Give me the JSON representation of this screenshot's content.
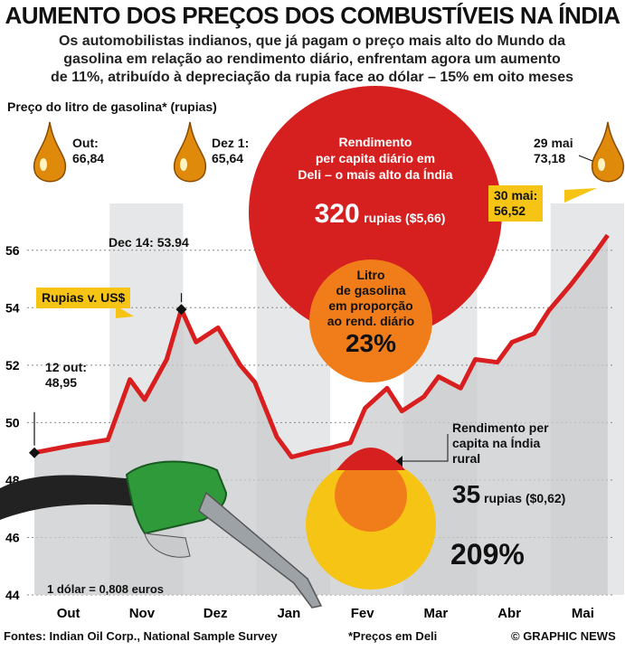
{
  "title": "AUMENTO DOS PREÇOS DOS COMBUSTÍVEIS NA ÍNDIA",
  "subtitle": [
    "Os automobilistas indianos, que já pagam o preço mais alto do Mundo da",
    "gasolina em relação ao rendimento diário, enfrentam agora um aumento",
    "de 11%, atribuído à depreciação da rupia face ao dólar – 15% em oito meses"
  ],
  "price_label": "Preço do litro de gasolina* (rupias)",
  "prices": [
    {
      "label": "Out:",
      "value": "66,84"
    },
    {
      "label": "Dez 1:",
      "value": "65,64"
    },
    {
      "label": "29 mai",
      "value": "73,18"
    }
  ],
  "callouts": {
    "rupias_label": "Rupias v. US$",
    "may30_label": "30 mai:",
    "may30_value": "56,52",
    "dec14": "Dec 14: 53.94",
    "oct12_label": "12 out:",
    "oct12_value": "48,95"
  },
  "delhi": {
    "line1": "Rendimento",
    "line2": "per capita diário em",
    "line3": "Deli – o mais alto da Índia",
    "amount": "320",
    "unit": "rupias ($5,66)"
  },
  "delhi_share": {
    "line1": "Litro",
    "line2": "de gasolina",
    "line3": "em proporção",
    "line4": "ao rend. diário",
    "percent": "23%"
  },
  "rural": {
    "line1": "Rendimento per",
    "line2": "capita na Índia",
    "line3": "rural",
    "amount": "35",
    "unit": "rupias ($0,62)",
    "percent": "209%"
  },
  "exchange_note": "1 dólar = 0,808 euros",
  "footer": {
    "sources": "Fontes: Indian Oil Corp., National Sample Survey",
    "note": "*Preços em Deli",
    "credit": "© GRAPHIC NEWS"
  },
  "colors": {
    "line": "#d81e1e",
    "area": "#c9cbcd",
    "band": "#e6e7e8",
    "red_circle": "#d62020",
    "orange_circle": "#f07d1a",
    "yellow_circle": "#f6c414",
    "nozzle": "#2e9a3a"
  },
  "chart_data": {
    "type": "area",
    "title": "Rupias v. US$",
    "xlabel": "",
    "ylabel": "",
    "ylim": [
      44,
      57
    ],
    "yticks": [
      44,
      46,
      48,
      50,
      52,
      54,
      56
    ],
    "categories": [
      "Out",
      "Nov",
      "Dez",
      "Jan",
      "Fev",
      "Mar",
      "Abr",
      "Mai"
    ],
    "x": [
      0,
      0.5,
      1,
      1.3,
      1.5,
      1.8,
      2.0,
      2.2,
      2.5,
      2.8,
      3.0,
      3.3,
      3.5,
      3.8,
      4.0,
      4.3,
      4.5,
      4.8,
      5.0,
      5.3,
      5.5,
      5.8,
      6.0,
      6.3,
      6.5,
      6.8,
      7.0,
      7.3,
      7.6,
      7.8
    ],
    "values": [
      48.95,
      49.2,
      49.4,
      51.5,
      50.8,
      52.2,
      53.94,
      52.8,
      53.3,
      52.0,
      51.4,
      49.5,
      48.8,
      49.0,
      49.1,
      49.3,
      50.5,
      51.2,
      50.4,
      50.9,
      51.6,
      51.2,
      52.2,
      52.1,
      52.8,
      53.1,
      53.9,
      54.8,
      55.8,
      56.52
    ],
    "series": [
      {
        "name": "Rupias v. US$",
        "values": [
          48.95,
          49.2,
          49.4,
          51.5,
          50.8,
          52.2,
          53.94,
          52.8,
          53.3,
          52.0,
          51.4,
          49.5,
          48.8,
          49.0,
          49.1,
          49.3,
          50.5,
          51.2,
          50.4,
          50.9,
          51.6,
          51.2,
          52.2,
          52.1,
          52.8,
          53.1,
          53.9,
          54.8,
          55.8,
          56.52
        ]
      }
    ],
    "annotations": [
      "12 out: 48,95",
      "Dec 14: 53.94",
      "30 mai: 56,52"
    ],
    "grid": true
  }
}
